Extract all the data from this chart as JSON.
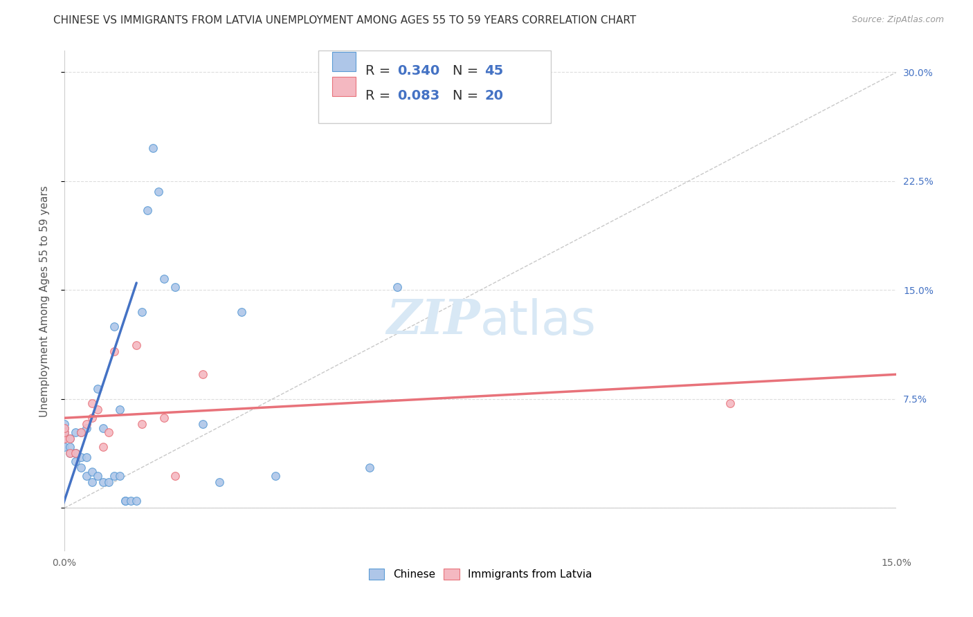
{
  "title": "CHINESE VS IMMIGRANTS FROM LATVIA UNEMPLOYMENT AMONG AGES 55 TO 59 YEARS CORRELATION CHART",
  "source": "Source: ZipAtlas.com",
  "ylabel": "Unemployment Among Ages 55 to 59 years",
  "xlim": [
    0,
    0.15
  ],
  "ylim": [
    -0.03,
    0.315
  ],
  "xticks": [
    0.0,
    0.025,
    0.05,
    0.075,
    0.1,
    0.125,
    0.15
  ],
  "xtick_labels": [
    "0.0%",
    "",
    "",
    "",
    "",
    "",
    "15.0%"
  ],
  "yticks": [
    0.0,
    0.075,
    0.15,
    0.225,
    0.3
  ],
  "ytick_labels": [
    "",
    "7.5%",
    "15.0%",
    "22.5%",
    "30.0%"
  ],
  "chinese_color": "#aec6e8",
  "latvia_color": "#f4b8c1",
  "chinese_edge": "#5b9bd5",
  "latvia_edge": "#e8727a",
  "trend_blue": "#4472c4",
  "trend_pink": "#e8727a",
  "ref_line_color": "#bbbbbb",
  "watermark_color": "#d8e8f5",
  "legend_R1": "0.340",
  "legend_N1": "45",
  "legend_R2": "0.083",
  "legend_N2": "20",
  "legend_value_color": "#4472c4",
  "legend_label_color": "#333333",
  "chinese_x": [
    0.0,
    0.0,
    0.0,
    0.0,
    0.0,
    0.001,
    0.001,
    0.001,
    0.002,
    0.002,
    0.002,
    0.002,
    0.003,
    0.003,
    0.003,
    0.004,
    0.004,
    0.004,
    0.005,
    0.005,
    0.006,
    0.006,
    0.007,
    0.007,
    0.008,
    0.009,
    0.009,
    0.01,
    0.01,
    0.011,
    0.011,
    0.012,
    0.013,
    0.014,
    0.015,
    0.016,
    0.017,
    0.018,
    0.02,
    0.025,
    0.028,
    0.032,
    0.038,
    0.055,
    0.06
  ],
  "chinese_y": [
    0.048,
    0.052,
    0.055,
    0.058,
    0.042,
    0.038,
    0.042,
    0.048,
    0.032,
    0.038,
    0.052,
    0.038,
    0.028,
    0.035,
    0.052,
    0.022,
    0.035,
    0.055,
    0.018,
    0.025,
    0.022,
    0.082,
    0.018,
    0.055,
    0.018,
    0.022,
    0.125,
    0.022,
    0.068,
    0.005,
    0.005,
    0.005,
    0.005,
    0.135,
    0.205,
    0.248,
    0.218,
    0.158,
    0.152,
    0.058,
    0.018,
    0.135,
    0.022,
    0.028,
    0.152
  ],
  "latvia_x": [
    0.0,
    0.0,
    0.0,
    0.001,
    0.001,
    0.002,
    0.003,
    0.004,
    0.005,
    0.005,
    0.006,
    0.007,
    0.008,
    0.009,
    0.013,
    0.014,
    0.018,
    0.02,
    0.025,
    0.12
  ],
  "latvia_y": [
    0.048,
    0.052,
    0.055,
    0.038,
    0.048,
    0.038,
    0.052,
    0.058,
    0.062,
    0.072,
    0.068,
    0.042,
    0.052,
    0.108,
    0.112,
    0.058,
    0.062,
    0.022,
    0.092,
    0.072
  ],
  "blue_trend_x": [
    -0.002,
    0.013
  ],
  "blue_trend_y": [
    -0.018,
    0.155
  ],
  "pink_trend_x": [
    0.0,
    0.15
  ],
  "pink_trend_y": [
    0.062,
    0.092
  ],
  "ref_line_x": [
    0.0,
    0.15
  ],
  "ref_line_y": [
    0.0,
    0.3
  ],
  "background_color": "#ffffff",
  "title_fontsize": 11,
  "axis_label_fontsize": 11,
  "tick_fontsize": 10,
  "marker_size": 70,
  "grid_color": "#dddddd"
}
